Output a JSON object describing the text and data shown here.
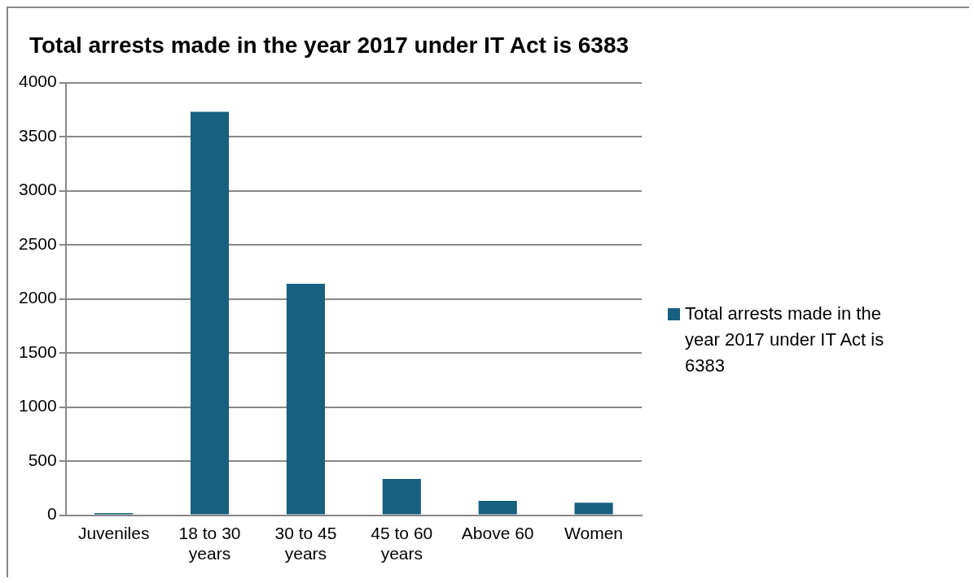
{
  "chart_data": {
    "type": "bar",
    "title": "Total arrests made in the year 2017 under IT Act is 6383",
    "categories": [
      "Juveniles",
      "18 to 30 years",
      "30 to 45 years",
      "45 to 60 years",
      "Above 60",
      "Women"
    ],
    "series": [
      {
        "name": "Total arrests made in the year 2017 under IT Act is 6383",
        "color": "#17607f",
        "values": [
          20,
          3730,
          2140,
          335,
          132,
          115
        ]
      }
    ],
    "ylim": [
      0,
      4000
    ],
    "yticks": [
      0,
      500,
      1000,
      1500,
      2000,
      2500,
      3000,
      3500,
      4000
    ],
    "grid": "y",
    "legend": "right"
  }
}
